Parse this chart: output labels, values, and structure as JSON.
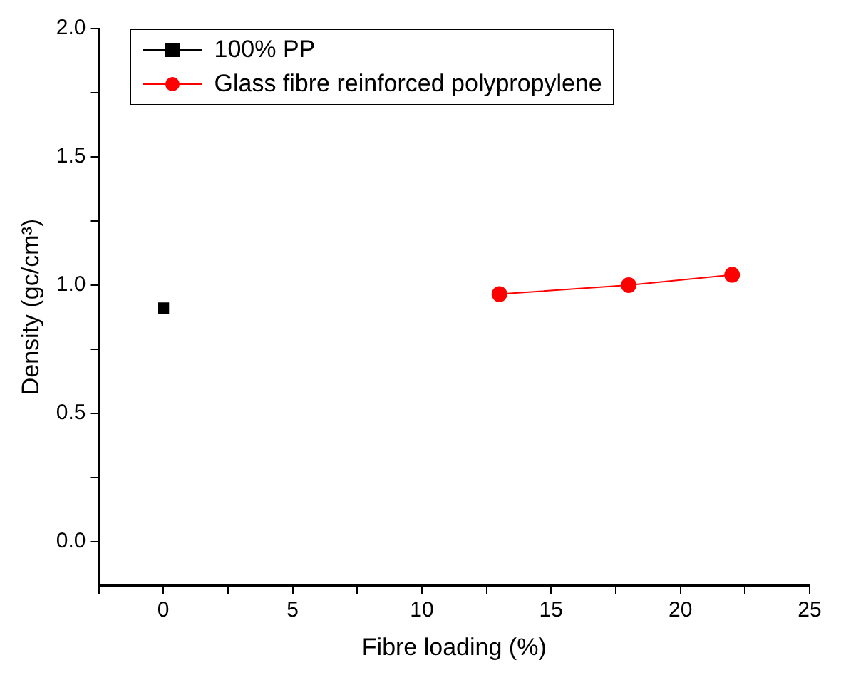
{
  "chart_data": {
    "type": "line",
    "xlabel": "Fibre loading (%)",
    "ylabel": "Density (gc/cm³)",
    "xlim": [
      -2.5,
      25
    ],
    "xticks": [
      {
        "value": -2.5,
        "label": null
      },
      0,
      {
        "value": 2.5,
        "label": null
      },
      5,
      {
        "value": 7.5,
        "label": null
      },
      10,
      {
        "value": 12.5,
        "label": null
      },
      15,
      {
        "value": 17.5,
        "label": null
      },
      20,
      {
        "value": 22.5,
        "label": null
      },
      25
    ],
    "ylim": [
      -0.17,
      2.0
    ],
    "yticks": [
      {
        "value": 0,
        "label": "0.0"
      },
      {
        "value": 0.25,
        "label": null
      },
      {
        "value": 0.5,
        "label": "0.5"
      },
      {
        "value": 0.75,
        "label": null
      },
      {
        "value": 1.0,
        "label": "1.0"
      },
      {
        "value": 1.25,
        "label": null
      },
      {
        "value": 1.5,
        "label": "1.5"
      },
      {
        "value": 1.75,
        "label": null
      },
      {
        "value": 2.0,
        "label": "2.0"
      }
    ],
    "grid": false,
    "legend": "top left",
    "series": [
      {
        "name": "100% PP",
        "color": "#000000",
        "type": "scatter",
        "marker": "square",
        "x": [
          0
        ],
        "values": [
          0.91
        ]
      },
      {
        "name": "Glass fibre reinforced polypropylene",
        "color": "#ff0000",
        "type": "line",
        "marker": "circle",
        "line_style": "solid",
        "x": [
          13,
          18,
          22
        ],
        "values": [
          0.965,
          1.0,
          1.04
        ]
      }
    ]
  }
}
